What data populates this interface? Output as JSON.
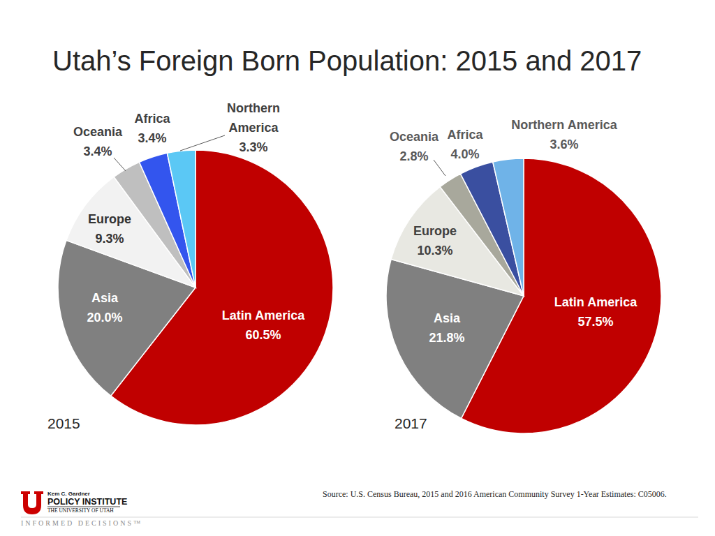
{
  "title": "Utah’s Foreign Born Population: 2015 and 2017",
  "source": "Source: U.S. Census Bureau, 2015 and 2016 American Community Survey 1-Year Estimates: C05006.",
  "logo": {
    "lines": [
      "Kem C. Gardner",
      "POLICY INSTITUTE",
      "THE UNIVERSITY OF UTAH"
    ],
    "tagline": "INFORMED DECISIONS™"
  },
  "chart_data": [
    {
      "type": "pie",
      "title": "2015",
      "categories": [
        "Latin America",
        "Asia",
        "Europe",
        "Oceania",
        "Africa",
        "Northern America"
      ],
      "values": [
        60.5,
        20.0,
        9.3,
        3.4,
        3.4,
        3.3
      ],
      "value_labels": [
        "60.5%",
        "20.0%",
        "9.3%",
        "3.4%",
        "3.4%",
        "3.3%"
      ],
      "colors": [
        "#c00000",
        "#808080",
        "#f2f2f2",
        "#bfbfbf",
        "#3355ee",
        "#5bc8f5"
      ],
      "data_labels": true
    },
    {
      "type": "pie",
      "title": "2017",
      "categories": [
        "Latin America",
        "Asia",
        "Europe",
        "Oceania",
        "Africa",
        "Northern America"
      ],
      "values": [
        57.5,
        21.8,
        10.3,
        2.8,
        4.0,
        3.6
      ],
      "value_labels": [
        "57.5%",
        "21.8%",
        "10.3%",
        "2.8%",
        "4.0%",
        "3.6%"
      ],
      "colors": [
        "#c00000",
        "#808080",
        "#e8e8e2",
        "#a8a89c",
        "#3a4fa0",
        "#6fb3e8"
      ],
      "data_labels": true
    }
  ]
}
